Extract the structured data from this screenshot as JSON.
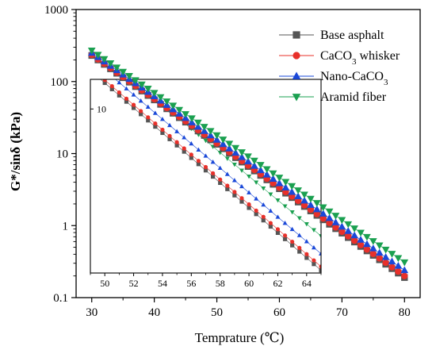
{
  "chart_data": {
    "type": "scatter",
    "xlabel": "Temprature (℃)",
    "ylabel": "G*/sinδ (kPa)",
    "xlim": [
      27.5,
      82.5
    ],
    "ylim": [
      0.1,
      1000
    ],
    "yscale": "log",
    "x_ticks": [
      "30",
      "40",
      "50",
      "60",
      "70",
      "80"
    ],
    "y_ticks": [
      "0.1",
      "1",
      "10",
      "100",
      "1000"
    ],
    "legend_position": "top-right",
    "legend": [
      {
        "label": "Base asphalt",
        "color": "#555555",
        "marker": "square"
      },
      {
        "label": "CaCO",
        "sub": "3",
        "suffix": " whisker",
        "color": "#e8302a",
        "marker": "circle"
      },
      {
        "label": "Nano-CaCO",
        "sub": "3",
        "suffix": "",
        "color": "#1a48d8",
        "marker": "triangle-up"
      },
      {
        "label": "Aramid fiber",
        "color": "#1aa050",
        "marker": "triangle-down"
      }
    ],
    "series": [
      {
        "name": "Base asphalt",
        "color": "#555555",
        "marker": "square",
        "x_start": 30,
        "x_end": 80,
        "x_step": 1,
        "y_start": 230,
        "y_end": 0.19
      },
      {
        "name": "CaCO3 whisker",
        "color": "#e8302a",
        "marker": "circle",
        "x_start": 30,
        "x_end": 80,
        "x_step": 1,
        "y_start": 235,
        "y_end": 0.2
      },
      {
        "name": "Nano-CaCO3",
        "color": "#1a48d8",
        "marker": "triangle-up",
        "x_start": 30,
        "x_end": 80,
        "x_step": 1,
        "y_start": 250,
        "y_end": 0.24
      },
      {
        "name": "Aramid fiber",
        "color": "#1aa050",
        "marker": "triangle-down",
        "x_start": 30,
        "x_end": 80,
        "x_step": 1,
        "y_start": 270,
        "y_end": 0.31
      }
    ],
    "zoom_region": {
      "x": [
        48.5,
        65.5
      ],
      "y": [
        1.7,
        22
      ]
    },
    "inset": {
      "xlim": [
        49,
        65
      ],
      "ylim": [
        1.55,
        14
      ],
      "yscale": "log",
      "x_ticks": [
        "50",
        "52",
        "54",
        "56",
        "58",
        "60",
        "62",
        "64"
      ],
      "y_ticks": [
        "10"
      ]
    }
  }
}
